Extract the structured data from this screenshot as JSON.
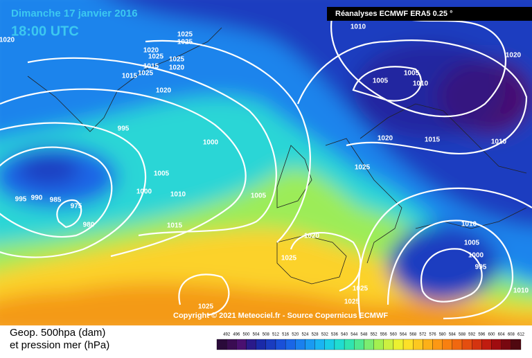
{
  "header": {
    "date": "Dimanche 17 janvier 2016",
    "time": "18:00 UTC",
    "source": "Réanalyses ECMWF ERA5 0.25 °",
    "copyright": "Copyright © 2021 Meteociel.fr - Source Copernicus ECMWF"
  },
  "legend": {
    "line1": "Geop. 500hpa (dam)",
    "line2": "et pression mer (hPa)",
    "scale": [
      492,
      496,
      500,
      504,
      508,
      512,
      516,
      520,
      524,
      528,
      532,
      536,
      540,
      544,
      548,
      552,
      556,
      560,
      564,
      568,
      572,
      576,
      580,
      584,
      588,
      592,
      596,
      600,
      604,
      608,
      612
    ],
    "colors": [
      "#2a0a3a",
      "#3a0c52",
      "#4a1070",
      "#2a1a8a",
      "#1a2aa8",
      "#1a3cc0",
      "#1a50d8",
      "#1a66e6",
      "#1a80ee",
      "#1a9af2",
      "#1ab4f2",
      "#1acce6",
      "#20dcd0",
      "#30e4b0",
      "#50e890",
      "#7cec70",
      "#a4f050",
      "#ccf040",
      "#ecf030",
      "#fce028",
      "#fcc820",
      "#fcb018",
      "#fc9814",
      "#f88010",
      "#f06810",
      "#e44e10",
      "#d43410",
      "#c01c10",
      "#a00c10",
      "#780810",
      "#500810"
    ]
  },
  "isobars": [
    "1025",
    "1025",
    "1020",
    "1020",
    "1025",
    "1025",
    "1015",
    "1020",
    "1015",
    "1025",
    "1020",
    "995",
    "1000",
    "1005",
    "1000",
    "1010",
    "995",
    "990",
    "985",
    "975",
    "980",
    "1015",
    "1005",
    "1020",
    "1025",
    "1025",
    "1025",
    "1025",
    "1010",
    "1005",
    "1005",
    "1010",
    "1020",
    "1020",
    "1015",
    "1010",
    "1025",
    "1010",
    "1005",
    "1000",
    "995",
    "1010"
  ]
}
